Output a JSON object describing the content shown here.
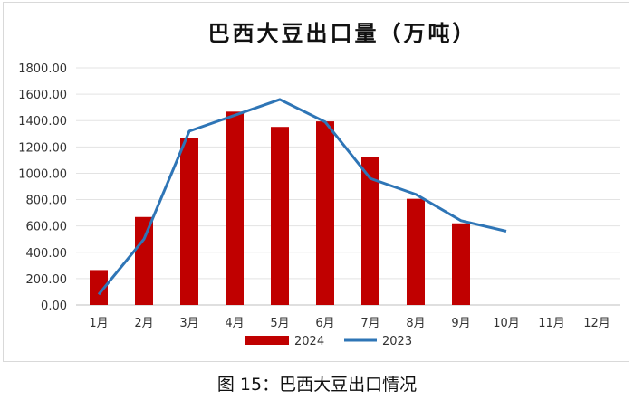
{
  "chart_data": {
    "type": "bar",
    "title": "巴西大豆出口量（万吨）",
    "categories": [
      "1月",
      "2月",
      "3月",
      "4月",
      "5月",
      "6月",
      "7月",
      "8月",
      "9月",
      "10月",
      "11月",
      "12月"
    ],
    "series": [
      {
        "name": "2024",
        "type": "bar",
        "color": "#c00000",
        "values": [
          265,
          668,
          1268,
          1468,
          1352,
          1394,
          1122,
          806,
          620,
          null,
          null,
          null
        ]
      },
      {
        "name": "2023",
        "type": "line",
        "color": "#2e75b6",
        "values": [
          80,
          500,
          1320,
          1440,
          1560,
          1390,
          960,
          840,
          640,
          560,
          null,
          null
        ]
      }
    ],
    "yticks": [
      "0.00",
      "200.00",
      "400.00",
      "600.00",
      "800.00",
      "1000.00",
      "1200.00",
      "1400.00",
      "1600.00",
      "1800.00"
    ],
    "ylim": [
      0,
      1800
    ],
    "grid": true,
    "legend_position": "bottom"
  },
  "caption": "图 15：巴西大豆出口情况"
}
